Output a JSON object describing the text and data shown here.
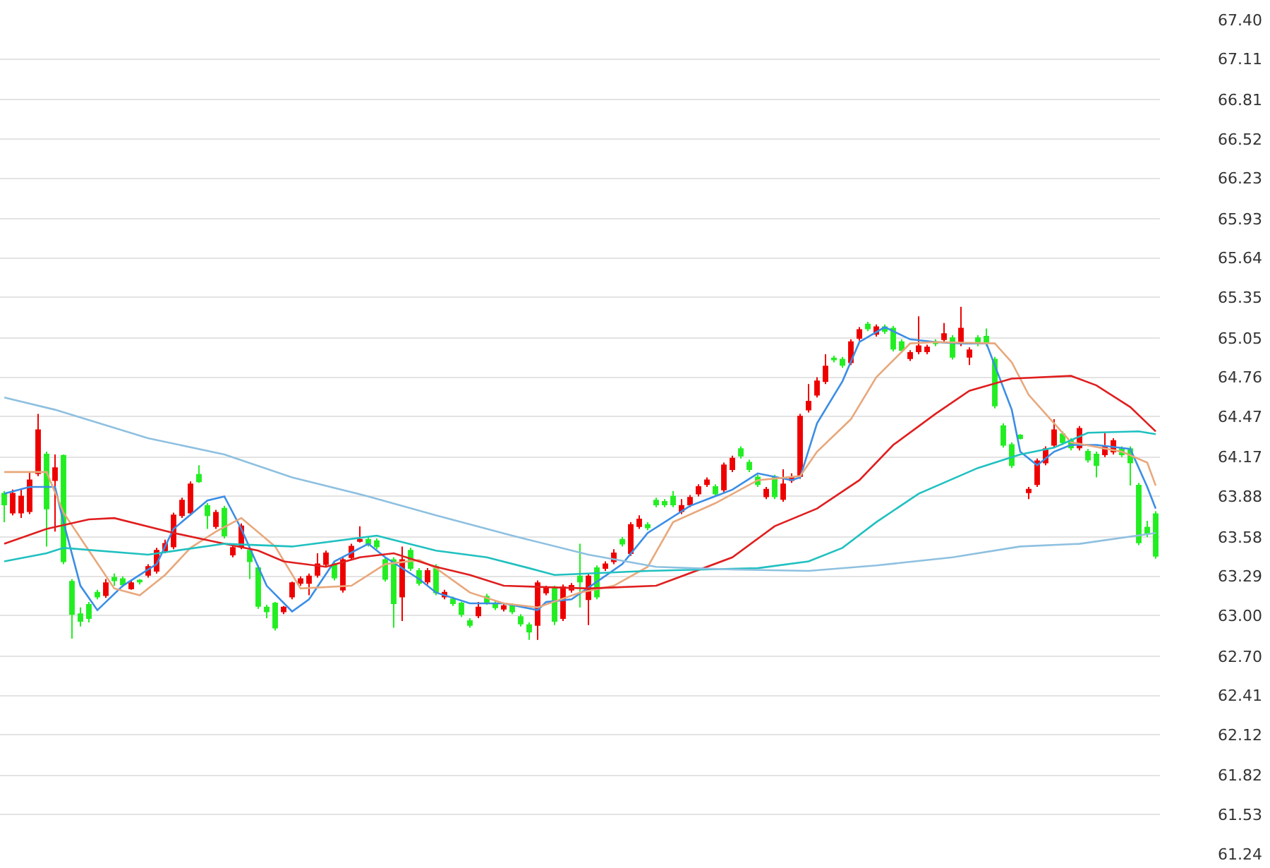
{
  "chart_data": {
    "type": "candlestick",
    "categories": [
      null,
      null,
      null,
      null,
      null,
      null,
      null,
      null,
      null,
      null,
      null,
      null,
      null,
      null,
      null,
      null,
      null,
      null,
      null,
      null,
      null,
      null,
      null,
      null,
      null,
      null,
      null,
      null,
      null,
      null,
      null,
      null,
      null,
      null,
      null,
      null,
      null,
      null,
      null,
      null,
      null,
      null,
      null,
      null,
      null,
      null,
      null,
      null,
      null,
      null,
      null,
      null,
      null,
      null,
      null,
      null,
      null,
      null,
      null,
      null,
      null,
      null,
      null,
      null,
      null,
      null,
      null,
      null,
      null,
      null,
      null,
      null,
      null,
      null,
      null,
      null,
      null,
      null,
      null,
      null,
      null,
      null,
      null,
      null,
      null,
      null,
      null,
      null,
      null,
      null,
      null,
      null,
      null,
      null,
      null,
      null,
      null,
      null,
      null,
      null,
      null,
      null,
      null,
      null,
      null,
      null,
      null,
      null,
      null,
      null,
      null,
      null,
      null,
      null,
      null,
      null,
      null,
      null,
      null,
      null,
      null,
      null,
      null,
      null,
      null,
      null,
      null,
      null,
      null,
      null,
      null,
      null,
      null,
      null,
      null,
      null,
      null
    ],
    "ohlc": [
      [
        63.9,
        63.92,
        63.69,
        63.82
      ],
      [
        63.76,
        63.93,
        63.74,
        63.9
      ],
      [
        63.76,
        63.94,
        63.72,
        63.88
      ],
      [
        63.77,
        64.06,
        63.75,
        64.0
      ],
      [
        64.05,
        64.49,
        64.03,
        64.37
      ],
      [
        64.19,
        64.21,
        63.51,
        63.79
      ],
      [
        64.0,
        64.19,
        63.62,
        64.09
      ],
      [
        64.18,
        64.19,
        63.38,
        63.4
      ],
      [
        63.25,
        63.27,
        62.83,
        63.01
      ],
      [
        63.01,
        63.06,
        62.92,
        62.96
      ],
      [
        63.08,
        63.1,
        62.95,
        62.98
      ],
      [
        63.17,
        63.19,
        63.12,
        63.14
      ],
      [
        63.15,
        63.27,
        63.13,
        63.24
      ],
      [
        63.28,
        63.31,
        63.22,
        63.26
      ],
      [
        63.27,
        63.29,
        63.21,
        63.23
      ],
      [
        63.2,
        63.26,
        63.19,
        63.24
      ],
      [
        63.26,
        63.27,
        63.23,
        63.25
      ],
      [
        63.3,
        63.38,
        63.28,
        63.36
      ],
      [
        63.33,
        63.5,
        63.31,
        63.48
      ],
      [
        63.48,
        63.56,
        63.46,
        63.53
      ],
      [
        63.51,
        63.76,
        63.49,
        63.74
      ],
      [
        63.74,
        63.87,
        63.72,
        63.85
      ],
      [
        63.76,
        63.99,
        63.74,
        63.97
      ],
      [
        64.04,
        64.11,
        63.98,
        63.99
      ],
      [
        63.81,
        63.83,
        63.64,
        63.74
      ],
      [
        63.66,
        63.78,
        63.64,
        63.76
      ],
      [
        63.79,
        63.81,
        63.57,
        63.59
      ],
      [
        63.45,
        63.52,
        63.43,
        63.5
      ],
      [
        63.51,
        63.68,
        63.49,
        63.66
      ],
      [
        63.48,
        63.5,
        63.27,
        63.4
      ],
      [
        63.35,
        63.37,
        63.05,
        63.07
      ],
      [
        63.06,
        63.08,
        62.98,
        63.03
      ],
      [
        63.09,
        63.1,
        62.89,
        62.91
      ],
      [
        63.03,
        63.07,
        63.01,
        63.06
      ],
      [
        63.14,
        63.25,
        63.12,
        63.24
      ],
      [
        63.24,
        63.29,
        63.22,
        63.27
      ],
      [
        63.24,
        63.31,
        63.15,
        63.29
      ],
      [
        63.3,
        63.46,
        63.28,
        63.38
      ],
      [
        63.38,
        63.48,
        63.36,
        63.46
      ],
      [
        63.38,
        63.4,
        63.26,
        63.28
      ],
      [
        63.19,
        63.43,
        63.17,
        63.41
      ],
      [
        63.43,
        63.53,
        63.41,
        63.51
      ],
      [
        63.55,
        63.66,
        63.54,
        63.56
      ],
      [
        63.56,
        63.58,
        63.51,
        63.53
      ],
      [
        63.55,
        63.57,
        63.49,
        63.51
      ],
      [
        63.41,
        63.43,
        63.25,
        63.27
      ],
      [
        63.41,
        63.43,
        62.91,
        63.09
      ],
      [
        63.14,
        63.51,
        62.96,
        63.41
      ],
      [
        63.48,
        63.5,
        63.33,
        63.35
      ],
      [
        63.33,
        63.35,
        63.22,
        63.24
      ],
      [
        63.25,
        63.35,
        63.23,
        63.33
      ],
      [
        63.36,
        63.38,
        63.15,
        63.17
      ],
      [
        63.14,
        63.19,
        63.12,
        63.17
      ],
      [
        63.12,
        63.14,
        63.07,
        63.09
      ],
      [
        63.09,
        63.1,
        62.99,
        63.01
      ],
      [
        62.96,
        62.98,
        62.91,
        62.93
      ],
      [
        63.0,
        63.1,
        62.98,
        63.06
      ],
      [
        63.14,
        63.16,
        63.08,
        63.1
      ],
      [
        63.09,
        63.11,
        63.04,
        63.06
      ],
      [
        63.05,
        63.09,
        63.03,
        63.07
      ],
      [
        63.07,
        63.09,
        63.01,
        63.03
      ],
      [
        62.99,
        63.01,
        62.92,
        62.94
      ],
      [
        62.93,
        62.95,
        62.82,
        62.88
      ],
      [
        62.93,
        63.26,
        62.82,
        63.24
      ],
      [
        63.17,
        63.22,
        63.15,
        63.2
      ],
      [
        63.2,
        63.22,
        62.93,
        62.96
      ],
      [
        62.98,
        63.23,
        62.96,
        63.21
      ],
      [
        63.19,
        63.24,
        63.17,
        63.22
      ],
      [
        63.29,
        63.53,
        63.06,
        63.25
      ],
      [
        63.12,
        63.31,
        62.93,
        63.29
      ],
      [
        63.35,
        63.37,
        63.12,
        63.14
      ],
      [
        63.35,
        63.4,
        63.33,
        63.38
      ],
      [
        63.4,
        63.49,
        63.38,
        63.46
      ],
      [
        63.56,
        63.58,
        63.51,
        63.53
      ],
      [
        63.46,
        63.69,
        63.44,
        63.67
      ],
      [
        63.66,
        63.74,
        63.64,
        63.71
      ],
      [
        63.67,
        63.69,
        63.63,
        63.65
      ],
      [
        63.85,
        63.87,
        63.8,
        63.82
      ],
      [
        63.84,
        63.86,
        63.8,
        63.82
      ],
      [
        63.88,
        63.92,
        63.8,
        63.82
      ],
      [
        63.77,
        63.86,
        63.75,
        63.81
      ],
      [
        63.82,
        63.89,
        63.8,
        63.87
      ],
      [
        63.9,
        63.97,
        63.88,
        63.95
      ],
      [
        63.97,
        64.02,
        63.95,
        64.0
      ],
      [
        63.95,
        63.97,
        63.88,
        63.9
      ],
      [
        63.93,
        64.13,
        63.91,
        64.11
      ],
      [
        64.08,
        64.18,
        64.06,
        64.16
      ],
      [
        64.23,
        64.25,
        64.16,
        64.18
      ],
      [
        64.13,
        64.15,
        64.06,
        64.08
      ],
      [
        64.02,
        64.04,
        63.95,
        63.97
      ],
      [
        63.88,
        63.95,
        63.86,
        63.93
      ],
      [
        64.02,
        64.04,
        63.86,
        63.88
      ],
      [
        63.86,
        64.08,
        63.84,
        63.97
      ],
      [
        64.0,
        64.05,
        63.98,
        64.02
      ],
      [
        64.03,
        64.49,
        64.01,
        64.47
      ],
      [
        64.52,
        64.71,
        64.5,
        64.58
      ],
      [
        64.63,
        64.76,
        64.61,
        64.73
      ],
      [
        64.73,
        64.93,
        64.71,
        64.84
      ],
      [
        64.9,
        64.92,
        64.87,
        64.89
      ],
      [
        64.89,
        64.91,
        64.83,
        64.85
      ],
      [
        64.87,
        65.04,
        64.85,
        65.02
      ],
      [
        65.05,
        65.13,
        65.03,
        65.11
      ],
      [
        65.15,
        65.17,
        65.1,
        65.12
      ],
      [
        65.08,
        65.15,
        65.06,
        65.13
      ],
      [
        65.13,
        65.15,
        65.08,
        65.1
      ],
      [
        65.12,
        65.14,
        64.95,
        64.97
      ],
      [
        65.02,
        65.04,
        64.94,
        64.96
      ],
      [
        64.9,
        64.96,
        64.88,
        64.94
      ],
      [
        64.95,
        65.21,
        64.93,
        64.99
      ],
      [
        64.95,
        65.0,
        64.93,
        64.98
      ],
      [
        65.02,
        65.04,
        64.99,
        65.01
      ],
      [
        65.04,
        65.16,
        65.02,
        65.08
      ],
      [
        65.05,
        65.07,
        64.89,
        64.91
      ],
      [
        65.01,
        65.28,
        64.99,
        65.12
      ],
      [
        64.91,
        64.98,
        64.85,
        64.96
      ],
      [
        65.05,
        65.07,
        64.99,
        65.01
      ],
      [
        65.06,
        65.12,
        64.99,
        65.01
      ],
      [
        64.89,
        64.91,
        64.53,
        64.55
      ],
      [
        64.4,
        64.42,
        64.24,
        64.26
      ],
      [
        64.26,
        64.28,
        64.09,
        64.11
      ],
      [
        64.33,
        64.34,
        64.3,
        64.31
      ],
      [
        63.91,
        63.95,
        63.86,
        63.93
      ],
      [
        63.97,
        64.16,
        63.95,
        64.14
      ],
      [
        64.13,
        64.25,
        64.11,
        64.23
      ],
      [
        64.26,
        64.45,
        64.24,
        64.37
      ],
      [
        64.34,
        64.36,
        64.26,
        64.28
      ],
      [
        64.29,
        64.31,
        64.22,
        64.24
      ],
      [
        64.24,
        64.4,
        64.22,
        64.38
      ],
      [
        64.21,
        64.23,
        64.13,
        64.15
      ],
      [
        64.19,
        64.21,
        64.02,
        64.11
      ],
      [
        64.19,
        64.35,
        64.17,
        64.25
      ],
      [
        64.21,
        64.31,
        64.19,
        64.29
      ],
      [
        64.23,
        64.25,
        64.17,
        64.19
      ],
      [
        64.23,
        64.25,
        63.96,
        64.13
      ],
      [
        63.96,
        63.98,
        63.52,
        63.54
      ],
      [
        63.65,
        63.7,
        63.58,
        63.61
      ],
      [
        63.75,
        63.77,
        63.42,
        63.44
      ]
    ],
    "colors": [
      "#22ee22",
      "#ee0000",
      "#ee0000",
      "#ee0000",
      "#ee0000",
      "#22ee22",
      "#ee0000",
      "#22ee22",
      "#22ee22",
      "#22ee22",
      "#22ee22",
      "#22ee22",
      "#ee0000",
      "#22ee22",
      "#22ee22",
      "#ee0000",
      "#22ee22",
      "#ee0000",
      "#ee0000",
      "#ee0000",
      "#ee0000",
      "#ee0000",
      "#ee0000",
      "#22ee22",
      "#22ee22",
      "#ee0000",
      "#22ee22",
      "#ee0000",
      "#ee0000",
      "#22ee22",
      "#22ee22",
      "#22ee22",
      "#22ee22",
      "#ee0000",
      "#ee0000",
      "#ee0000",
      "#ee0000",
      "#ee0000",
      "#ee0000",
      "#22ee22",
      "#ee0000",
      "#ee0000",
      "#ee0000",
      "#22ee22",
      "#22ee22",
      "#22ee22",
      "#22ee22",
      "#ee0000",
      "#22ee22",
      "#22ee22",
      "#ee0000",
      "#22ee22",
      "#ee0000",
      "#22ee22",
      "#22ee22",
      "#22ee22",
      "#ee0000",
      "#22ee22",
      "#22ee22",
      "#ee0000",
      "#22ee22",
      "#22ee22",
      "#22ee22",
      "#ee0000",
      "#ee0000",
      "#22ee22",
      "#ee0000",
      "#ee0000",
      "#22ee22",
      "#ee0000",
      "#22ee22",
      "#ee0000",
      "#ee0000",
      "#22ee22",
      "#ee0000",
      "#ee0000",
      "#22ee22",
      "#22ee22",
      "#22ee22",
      "#22ee22",
      "#ee0000",
      "#ee0000",
      "#ee0000",
      "#ee0000",
      "#22ee22",
      "#ee0000",
      "#ee0000",
      "#22ee22",
      "#22ee22",
      "#22ee22",
      "#ee0000",
      "#22ee22",
      "#ee0000",
      "#ee0000",
      "#ee0000",
      "#ee0000",
      "#ee0000",
      "#ee0000",
      "#22ee22",
      "#22ee22",
      "#ee0000",
      "#ee0000",
      "#22ee22",
      "#ee0000",
      "#22ee22",
      "#22ee22",
      "#22ee22",
      "#ee0000",
      "#ee0000",
      "#ee0000",
      "#22ee22",
      "#ee0000",
      "#22ee22",
      "#ee0000",
      "#ee0000",
      "#22ee22",
      "#22ee22",
      "#22ee22",
      "#22ee22",
      "#22ee22",
      "#22ee22",
      "#ee0000",
      "#ee0000",
      "#ee0000",
      "#ee0000",
      "#22ee22",
      "#22ee22",
      "#ee0000",
      "#22ee22",
      "#22ee22",
      "#ee0000",
      "#ee0000",
      "#22ee22",
      "#22ee22",
      "#22ee22",
      "#22ee22",
      "#22ee22"
    ],
    "series": [
      {
        "type": "line",
        "color": "#3a8ee6",
        "values": [
          63.9,
          null,
          null,
          63.95,
          null,
          null,
          63.95,
          63.69,
          null,
          63.22,
          null,
          63.04,
          null,
          null,
          63.22,
          null,
          null,
          null,
          63.38,
          null,
          63.64,
          null,
          null,
          null,
          63.85,
          null,
          63.88,
          null,
          63.64,
          null,
          null,
          63.22,
          null,
          null,
          63.03,
          null,
          63.12,
          null,
          null,
          63.4,
          null,
          null,
          null,
          63.53,
          null,
          63.43,
          null,
          null,
          null,
          63.27,
          null,
          63.17,
          null,
          null,
          null,
          63.09,
          null,
          null,
          null,
          63.09,
          null,
          null,
          null,
          63.04,
          63.1,
          null,
          null,
          63.12,
          null,
          null,
          63.25,
          null,
          null,
          63.38,
          null,
          null,
          63.61,
          null,
          null,
          null,
          null,
          63.81,
          null,
          null,
          null,
          null,
          63.93,
          null,
          null,
          64.05,
          null,
          null,
          null,
          64.0,
          64.02,
          null,
          64.42,
          null,
          null,
          64.73,
          null,
          65.02,
          null,
          null,
          65.13,
          null,
          null,
          65.04,
          null,
          null,
          65.02,
          null,
          null,
          65.01,
          null,
          null,
          65.01,
          null,
          null,
          64.52,
          64.21,
          null,
          64.11,
          null,
          64.21,
          null,
          64.26,
          null,
          null,
          64.26,
          null,
          null,
          null,
          64.23,
          null,
          63.95,
          63.79
        ]
      },
      {
        "type": "line",
        "color": "#e8a87c",
        "values": [
          64.06,
          null,
          null,
          null,
          null,
          64.06,
          null,
          63.76,
          null,
          null,
          63.48,
          null,
          null,
          63.2,
          null,
          null,
          63.15,
          null,
          null,
          63.3,
          null,
          null,
          63.5,
          null,
          null,
          63.62,
          null,
          null,
          63.72,
          null,
          null,
          null,
          63.51,
          null,
          null,
          63.2,
          null,
          null,
          null,
          null,
          null,
          63.22,
          null,
          null,
          null,
          63.38,
          null,
          null,
          null,
          63.41,
          null,
          63.35,
          null,
          null,
          null,
          63.17,
          null,
          null,
          null,
          63.09,
          null,
          null,
          null,
          63.06,
          null,
          null,
          null,
          null,
          63.17,
          null,
          null,
          null,
          63.22,
          null,
          null,
          null,
          63.36,
          null,
          null,
          63.69,
          null,
          null,
          null,
          null,
          63.83,
          null,
          null,
          null,
          null,
          64.0,
          null,
          null,
          null,
          null,
          64.03,
          null,
          64.21,
          null,
          null,
          null,
          64.45,
          null,
          null,
          64.76,
          null,
          null,
          null,
          65.01,
          null,
          null,
          65.02,
          null,
          null,
          null,
          null,
          null,
          null,
          65.01,
          null,
          64.87,
          null,
          64.63,
          null,
          null,
          64.42,
          null,
          64.28,
          null,
          null,
          null,
          null,
          null,
          64.21,
          null,
          null,
          64.13,
          63.96
        ]
      },
      {
        "type": "line",
        "color": "#e01e1e",
        "values": [
          63.53,
          null,
          null,
          null,
          null,
          63.64,
          null,
          null,
          null,
          null,
          63.71,
          null,
          null,
          63.72,
          null,
          null,
          null,
          null,
          null,
          null,
          63.61,
          null,
          null,
          null,
          null,
          null,
          63.53,
          null,
          null,
          null,
          63.48,
          null,
          null,
          63.4,
          null,
          null,
          null,
          null,
          63.36,
          null,
          null,
          null,
          63.43,
          null,
          null,
          null,
          63.46,
          null,
          null,
          null,
          null,
          63.36,
          null,
          null,
          null,
          63.3,
          null,
          null,
          null,
          63.22,
          null,
          null,
          null,
          null,
          null,
          null,
          null,
          null,
          null,
          63.2,
          null,
          null,
          null,
          null,
          null,
          null,
          null,
          63.22,
          null,
          null,
          null,
          null,
          null,
          null,
          null,
          null,
          63.43,
          null,
          null,
          null,
          null,
          63.66,
          null,
          null,
          null,
          null,
          63.79,
          null,
          null,
          null,
          null,
          64.0,
          null,
          null,
          null,
          64.26,
          null,
          null,
          null,
          null,
          64.49,
          null,
          null,
          null,
          64.66,
          null,
          null,
          null,
          null,
          64.75,
          null,
          null,
          null,
          null,
          null,
          null,
          64.77,
          null,
          null,
          64.7,
          null,
          null,
          null,
          64.54,
          null,
          null,
          64.36
        ]
      },
      {
        "type": "line",
        "color": "#20c0c0",
        "values": [
          63.4,
          null,
          null,
          null,
          null,
          63.46,
          null,
          63.5,
          null,
          null,
          null,
          null,
          null,
          null,
          null,
          null,
          null,
          63.45,
          null,
          null,
          null,
          null,
          null,
          null,
          null,
          null,
          63.53,
          null,
          null,
          null,
          null,
          null,
          null,
          null,
          63.51,
          null,
          null,
          null,
          null,
          null,
          null,
          null,
          null,
          null,
          63.59,
          null,
          null,
          null,
          null,
          null,
          null,
          63.48,
          null,
          null,
          null,
          null,
          null,
          63.43,
          null,
          null,
          null,
          null,
          63.35,
          null,
          null,
          63.3,
          null,
          null,
          null,
          null,
          null,
          null,
          null,
          null,
          null,
          null,
          63.33,
          null,
          null,
          null,
          null,
          null,
          null,
          null,
          null,
          null,
          null,
          null,
          null,
          63.35,
          null,
          null,
          null,
          null,
          null,
          63.4,
          null,
          null,
          null,
          63.5,
          null,
          null,
          null,
          63.69,
          null,
          null,
          null,
          null,
          63.9,
          null,
          null,
          null,
          null,
          null,
          null,
          64.09,
          null,
          null,
          null,
          null,
          64.19,
          null,
          null,
          null,
          64.24,
          null,
          null,
          null,
          64.35,
          null,
          null,
          null,
          null,
          null,
          64.36,
          null,
          64.34
        ]
      },
      {
        "type": "line",
        "color": "#8ec0e0",
        "values": [
          64.61,
          null,
          null,
          null,
          null,
          null,
          64.52,
          null,
          null,
          null,
          null,
          null,
          null,
          null,
          null,
          null,
          null,
          64.31,
          null,
          null,
          null,
          null,
          null,
          null,
          null,
          null,
          64.19,
          null,
          null,
          null,
          null,
          null,
          null,
          null,
          64.02,
          null,
          null,
          null,
          null,
          null,
          null,
          null,
          null,
          63.88,
          null,
          null,
          null,
          null,
          null,
          null,
          null,
          63.74,
          null,
          null,
          null,
          null,
          null,
          null,
          null,
          null,
          63.59,
          null,
          null,
          null,
          null,
          null,
          null,
          null,
          null,
          63.45,
          null,
          null,
          null,
          null,
          null,
          null,
          null,
          63.36,
          null,
          null,
          null,
          null,
          null,
          null,
          null,
          null,
          63.34,
          null,
          null,
          null,
          null,
          null,
          null,
          null,
          null,
          63.33,
          null,
          null,
          null,
          null,
          null,
          null,
          null,
          63.37,
          null,
          null,
          null,
          null,
          null,
          null,
          null,
          null,
          63.43,
          null,
          null,
          null,
          null,
          null,
          null,
          null,
          63.51,
          null,
          null,
          null,
          null,
          null,
          null,
          63.53,
          null,
          null,
          null,
          null,
          null,
          null,
          null,
          null,
          63.61
        ]
      }
    ],
    "ylim": [
      61.24,
      67.4
    ],
    "yticks": [
      {
        "value": 67.4,
        "label": "67.40"
      },
      67.11,
      66.81,
      66.52,
      66.23,
      65.93,
      65.64,
      65.35,
      65.05,
      64.76,
      64.47,
      64.17,
      63.88,
      63.58,
      63.29,
      {
        "value": 63.0,
        "label": "63.00"
      },
      {
        "value": 62.7,
        "label": "62.70"
      },
      62.41,
      62.12,
      61.82,
      61.53,
      61.24
    ],
    "grid": "y",
    "tick_labels": "y",
    "marker": "none",
    "line_style": "solid"
  }
}
